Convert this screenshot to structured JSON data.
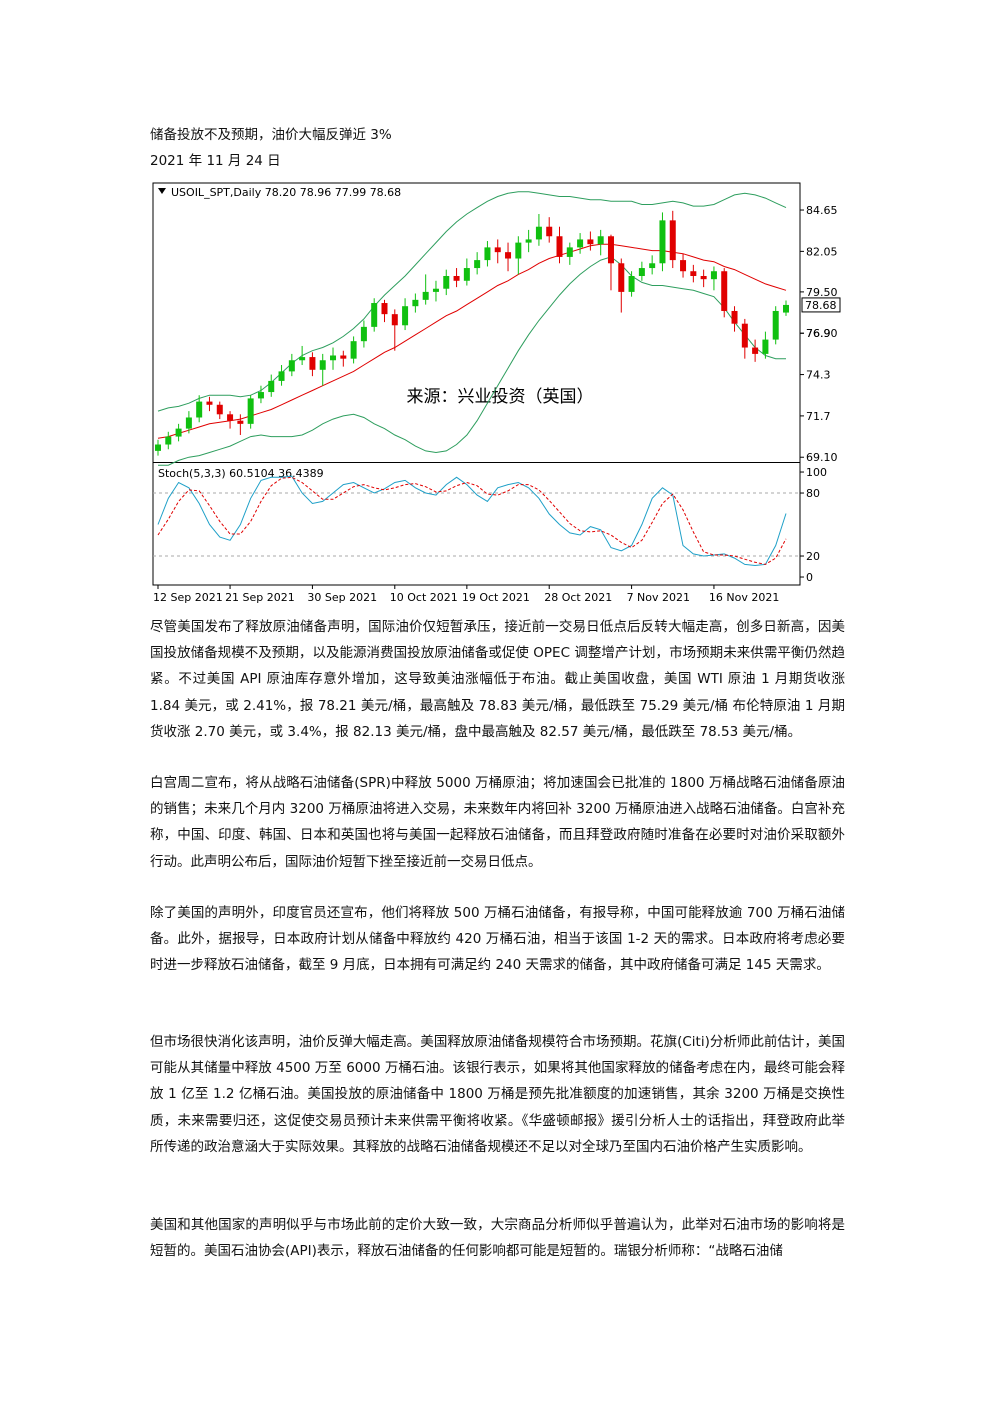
{
  "header": {
    "title": "储备投放不及预期，油价大幅反弹近 3%",
    "date": "2021 年 11 月 24 日"
  },
  "chart_data": [
    {
      "type": "candlestick",
      "title": "USOIL_SPT,Daily 78.20 78.96 77.99 78.68",
      "annotation": "来源：兴业投资（英国）",
      "categories": [
        "12 Sep 2021",
        null,
        null,
        null,
        null,
        null,
        null,
        "21 Sep 2021",
        null,
        null,
        null,
        null,
        null,
        null,
        null,
        "30 Sep 2021",
        null,
        null,
        null,
        null,
        null,
        null,
        null,
        "10 Oct 2021",
        null,
        null,
        null,
        null,
        null,
        null,
        "19 Oct 2021",
        null,
        null,
        null,
        null,
        null,
        null,
        null,
        "28 Oct 2021",
        null,
        null,
        null,
        null,
        null,
        null,
        null,
        "7 Nov 2021",
        null,
        null,
        null,
        null,
        null,
        null,
        null,
        "16 Nov 2021",
        null,
        null,
        null,
        null,
        null,
        null,
        null
      ],
      "open": [
        69.5,
        69.9,
        70.4,
        70.9,
        71.6,
        72.6,
        72.4,
        71.8,
        71.4,
        71.2,
        72.8,
        73.2,
        73.9,
        74.5,
        75.2,
        75.4,
        74.6,
        75.2,
        75.5,
        75.3,
        76.4,
        77.3,
        78.8,
        78.1,
        77.4,
        78.6,
        79.0,
        79.5,
        79.7,
        80.5,
        80.2,
        81.0,
        81.5,
        82.3,
        82.0,
        81.6,
        82.6,
        82.8,
        83.6,
        83.0,
        81.7,
        82.3,
        82.8,
        82.5,
        83.0,
        81.3,
        79.5,
        80.5,
        81.0,
        81.3,
        84.0,
        81.5,
        80.8,
        80.5,
        80.3,
        80.8,
        78.3,
        77.5,
        76.0,
        75.6,
        76.5,
        78.2
      ],
      "high": [
        70.2,
        70.7,
        71.2,
        72.0,
        73.0,
        72.9,
        72.6,
        72.0,
        71.8,
        73.0,
        73.6,
        74.3,
        74.9,
        75.6,
        76.1,
        75.7,
        75.6,
        76.0,
        75.8,
        76.7,
        77.7,
        79.1,
        79.0,
        78.4,
        79.1,
        79.4,
        80.6,
        80.2,
        80.9,
        81.0,
        81.6,
        82.0,
        82.7,
        82.8,
        82.6,
        83.0,
        83.4,
        84.4,
        84.2,
        83.6,
        82.6,
        83.2,
        83.3,
        83.4,
        83.1,
        81.6,
        80.8,
        81.4,
        81.8,
        84.5,
        84.6,
        81.9,
        81.2,
        80.9,
        81.1,
        81.0,
        78.6,
        77.8,
        76.5,
        77.0,
        78.6,
        78.96
      ],
      "low": [
        69.2,
        69.6,
        70.1,
        70.6,
        71.3,
        72.0,
        71.5,
        70.9,
        70.5,
        70.9,
        72.5,
        72.9,
        73.6,
        74.2,
        74.9,
        74.2,
        73.6,
        74.6,
        74.8,
        75.0,
        76.0,
        77.0,
        77.6,
        75.8,
        77.1,
        78.2,
        78.7,
        78.9,
        79.3,
        79.8,
        79.9,
        80.6,
        81.1,
        81.3,
        80.8,
        80.6,
        82.0,
        82.4,
        82.6,
        81.3,
        81.2,
        81.9,
        82.1,
        81.8,
        79.6,
        78.2,
        79.2,
        80.2,
        80.6,
        80.8,
        81.0,
        80.4,
        80.1,
        79.8,
        79.6,
        77.9,
        77.0,
        75.3,
        75.1,
        75.3,
        76.2,
        77.99
      ],
      "close": [
        69.9,
        70.4,
        70.9,
        71.6,
        72.6,
        72.4,
        71.8,
        71.4,
        71.2,
        72.8,
        73.2,
        73.9,
        74.5,
        75.2,
        75.4,
        74.6,
        75.2,
        75.5,
        75.3,
        76.4,
        77.3,
        78.8,
        78.1,
        77.4,
        78.6,
        79.0,
        79.5,
        79.7,
        80.5,
        80.2,
        81.0,
        81.5,
        82.3,
        82.0,
        81.6,
        82.6,
        82.8,
        83.6,
        83.0,
        81.7,
        82.3,
        82.8,
        82.5,
        83.0,
        81.3,
        79.5,
        80.5,
        81.0,
        81.3,
        84.0,
        81.5,
        80.8,
        80.5,
        80.3,
        80.8,
        78.3,
        77.5,
        76.0,
        75.6,
        76.5,
        78.3,
        78.68
      ],
      "up_color": "#10c010",
      "down_color": "#e00000",
      "series": [
        {
          "color": "#e00000",
          "values": [
            70.3,
            70.4,
            70.6,
            70.8,
            71.0,
            71.2,
            71.3,
            71.4,
            71.5,
            71.7,
            71.9,
            72.1,
            72.4,
            72.7,
            73.0,
            73.3,
            73.6,
            73.9,
            74.2,
            74.5,
            74.9,
            75.3,
            75.7,
            76.0,
            76.4,
            76.8,
            77.2,
            77.6,
            78.0,
            78.3,
            78.7,
            79.1,
            79.5,
            79.9,
            80.2,
            80.6,
            80.9,
            81.3,
            81.6,
            81.8,
            82.0,
            82.2,
            82.4,
            82.5,
            82.5,
            82.4,
            82.3,
            82.2,
            82.1,
            82.1,
            82.0,
            81.9,
            81.7,
            81.5,
            81.4,
            81.1,
            80.9,
            80.6,
            80.3,
            80.0,
            79.8,
            79.6
          ]
        },
        {
          "color": "#2e9e5e",
          "values": [
            72.0,
            72.2,
            72.3,
            72.5,
            72.8,
            73.0,
            73.0,
            73.0,
            72.9,
            73.0,
            73.3,
            73.8,
            74.4,
            75.0,
            75.5,
            75.8,
            76.0,
            76.3,
            76.7,
            77.2,
            77.8,
            78.6,
            79.3,
            79.9,
            80.5,
            81.2,
            81.9,
            82.6,
            83.3,
            83.9,
            84.4,
            84.8,
            85.2,
            85.5,
            85.7,
            85.8,
            85.8,
            85.7,
            85.6,
            85.5,
            85.5,
            85.4,
            85.3,
            85.3,
            85.2,
            85.2,
            85.2,
            85.0,
            85.0,
            85.1,
            85.2,
            85.1,
            84.9,
            84.9,
            85.0,
            85.3,
            85.6,
            85.7,
            85.6,
            85.4,
            85.1,
            84.8
          ]
        },
        {
          "color": "#2e9e5e",
          "values": [
            68.6,
            68.6,
            68.9,
            69.1,
            69.2,
            69.4,
            69.6,
            69.8,
            70.1,
            70.4,
            70.5,
            70.4,
            70.4,
            70.4,
            70.5,
            70.8,
            71.2,
            71.5,
            71.7,
            71.8,
            71.6,
            71.2,
            70.9,
            70.5,
            70.2,
            69.8,
            69.5,
            69.4,
            69.5,
            69.9,
            70.5,
            71.4,
            72.5,
            73.6,
            74.7,
            75.8,
            76.8,
            77.7,
            78.5,
            79.3,
            80.0,
            80.6,
            81.1,
            81.5,
            81.7,
            81.2,
            80.5,
            80.1,
            79.9,
            79.9,
            79.8,
            79.7,
            79.6,
            79.4,
            79.2,
            78.5,
            77.6,
            76.8,
            76.0,
            75.5,
            75.3,
            75.3
          ]
        }
      ],
      "ylim": [
        68.8,
        86.35
      ],
      "yticks": [
        84.65,
        82.05,
        {
          "value": 79.5,
          "label": "79.50"
        },
        76.9,
        {
          "value": 76.9,
          "label": "76.90"
        },
        74.3,
        71.7,
        {
          "value": 69.1,
          "label": "69.10"
        }
      ]
    },
    {
      "type": "line",
      "title": "Stoch(5,3,3) 60.5104 36.4389",
      "series": [
        {
          "color": "#1fa0c8",
          "values": [
            50,
            75,
            90,
            85,
            70,
            50,
            38,
            35,
            50,
            75,
            92,
            95,
            95,
            96,
            80,
            70,
            72,
            80,
            88,
            90,
            85,
            80,
            84,
            90,
            92,
            85,
            80,
            78,
            88,
            95,
            88,
            78,
            72,
            85,
            88,
            90,
            85,
            75,
            60,
            50,
            42,
            40,
            48,
            45,
            28,
            25,
            30,
            50,
            75,
            85,
            78,
            30,
            22,
            20,
            21,
            22,
            18,
            12,
            11,
            12,
            30,
            60.5104
          ]
        },
        {
          "color": "#e00000",
          "dashed": true,
          "values": [
            40,
            55,
            72,
            83,
            82,
            68,
            53,
            41,
            41,
            53,
            72,
            87,
            94,
            95,
            90,
            82,
            74,
            74,
            80,
            86,
            88,
            85,
            83,
            85,
            88,
            89,
            86,
            81,
            82,
            87,
            90,
            87,
            79,
            78,
            82,
            88,
            88,
            83,
            73,
            62,
            51,
            44,
            43,
            44,
            40,
            33,
            28,
            35,
            52,
            70,
            79,
            64,
            43,
            24,
            21,
            21,
            20,
            17,
            14,
            12,
            18,
            36.4389
          ]
        }
      ],
      "levels": [
        80,
        20
      ],
      "ylim": [
        -7.6,
        108.6
      ],
      "yticks": [
        100,
        80,
        20,
        0
      ]
    }
  ],
  "paragraphs": [
    "尽管美国发布了释放原油储备声明，国际油价仅短暂承压，接近前一交易日低点后反转大幅走高，创多日新高，因美国投放储备规模不及预期，以及能源消费国投放原油储备或促使 OPEC 调整增产计划，市场预期未来供需平衡仍然趋紧。不过美国 API 原油库存意外增加，这导致美油涨幅低于布油。截止美国收盘，美国 WTI 原油 1 月期货收涨 1.84 美元，或 2.41%，报 78.21 美元/桶，最高触及 78.83 美元/桶，最低跌至 75.29 美元/桶 布伦特原油 1 月期货收涨 2.70 美元，或 3.4%，报 82.13 美元/桶，盘中最高触及 82.57 美元/桶，最低跌至 78.53 美元/桶。",
    "白宫周二宣布，将从战略石油储备(SPR)中释放 5000 万桶原油；将加速国会已批准的 1800 万桶战略石油储备原油的销售；未来几个月内 3200 万桶原油将进入交易，未来数年内将回补 3200 万桶原油进入战略石油储备。白宫补充称，中国、印度、韩国、日本和英国也将与美国一起释放石油储备，而且拜登政府随时准备在必要时对油价采取额外行动。此声明公布后，国际油价短暂下挫至接近前一交易日低点。",
    "除了美国的声明外，印度官员还宣布，他们将释放 500 万桶石油储备，有报导称，中国可能释放逾 700 万桶石油储备。此外，据报导，日本政府计划从储备中释放约 420 万桶石油，相当于该国 1-2 天的需求。日本政府将考虑必要时进一步释放石油储备，截至 9 月底，日本拥有可满足约 240 天需求的储备，其中政府储备可满足 145 天需求。",
    "但市场很快消化该声明，油价反弹大幅走高。美国释放原油储备规模符合市场预期。花旗(Citi)分析师此前估计，美国可能从其储量中释放 4500 万至 6000 万桶石油。该银行表示，如果将其他国家释放的储备考虑在内，最终可能会释放 1 亿至 1.2 亿桶石油。美国投放的原油储备中 1800 万桶是预先批准额度的加速销售，其余 3200 万桶是交换性质，未来需要归还，这促使交易员预计未来供需平衡将收紧。《华盛顿邮报》援引分析人士的话指出，拜登政府此举所传递的政治意涵大于实际效果。其释放的战略石油储备规模还不足以对全球乃至国内石油价格产生实质影响。",
    "美国和其他国家的声明似乎与市场此前的定价大致一致，大宗商品分析师似乎普遍认为，此举对石油市场的影响将是短暂的。美国石油协会(API)表示，释放石油储备的任何影响都可能是短暂的。瑞银分析师称：“战略石油储"
  ]
}
